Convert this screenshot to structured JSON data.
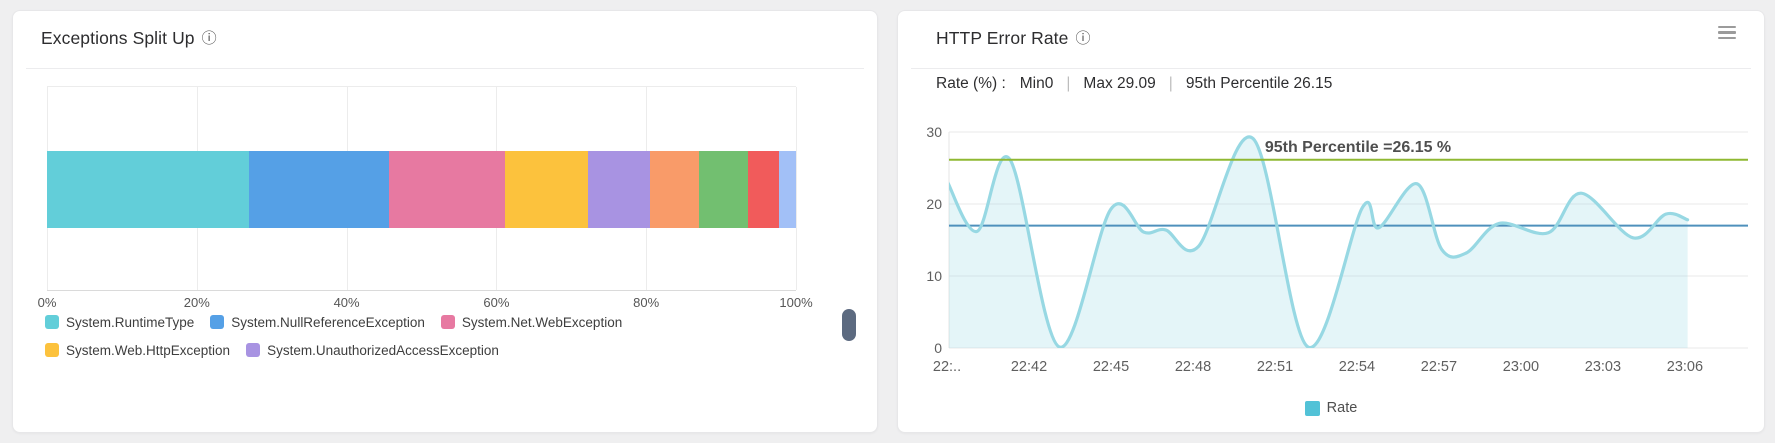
{
  "page": {
    "background": "#efeff0"
  },
  "icons": {
    "info": "ⓘ",
    "menu": "hamburger-menu"
  },
  "left_panel": {
    "title": "Exceptions Split Up",
    "chart_data": {
      "type": "bar",
      "subtype": "horizontal-stacked-percent",
      "xlim": [
        0,
        100
      ],
      "x_tick_labels": [
        "0%",
        "20%",
        "40%",
        "60%",
        "80%",
        "100%"
      ],
      "grid": "vertical",
      "legend_position": "bottom",
      "segments": [
        {
          "label": "System.RuntimeType",
          "value": 27.0,
          "color": "#62ced9"
        },
        {
          "label": "System.NullReferenceException",
          "value": 18.7,
          "color": "#55a0e6"
        },
        {
          "label": "System.Net.WebException",
          "value": 15.5,
          "color": "#e779a1"
        },
        {
          "label": "System.Web.HttpException",
          "value": 11.0,
          "color": "#fcc23d"
        },
        {
          "label": "System.UnauthorizedAccessException",
          "value": 8.3,
          "color": "#a893e2"
        },
        {
          "label": "",
          "value": 6.6,
          "color": "#f99b69"
        },
        {
          "label": "",
          "value": 6.5,
          "color": "#72bf70"
        },
        {
          "label": "",
          "value": 4.2,
          "color": "#f15b5b"
        },
        {
          "label": "",
          "value": 2.2,
          "color": "#a2c0f7"
        }
      ],
      "legend_rows": [
        [
          {
            "label": "System.RuntimeType",
            "color": "#62ced9"
          },
          {
            "label": "System.NullReferenceException",
            "color": "#55a0e6"
          },
          {
            "label": "System.Net.WebException",
            "color": "#e779a1"
          }
        ],
        [
          {
            "label": "System.Web.HttpException",
            "color": "#fcc23d"
          },
          {
            "label": "System.UnauthorizedAccessException",
            "color": "#a893e2"
          }
        ]
      ]
    }
  },
  "right_panel": {
    "title": "HTTP Error Rate",
    "stats": {
      "prefix": "Rate (%) :",
      "items": [
        "Min0",
        "Max 29.09",
        "95th Percentile 26.15"
      ],
      "separator": "|"
    },
    "chart_data": {
      "type": "area",
      "x_tick_labels": [
        "22:..",
        "22:42",
        "22:45",
        "22:48",
        "22:51",
        "22:54",
        "22:57",
        "23:00",
        "23:03",
        "23:06"
      ],
      "x_minutes_per_tick": 3,
      "x_unit": "minutes after first tick",
      "yticks": [
        0,
        10,
        20,
        30
      ],
      "ylim": [
        0,
        30
      ],
      "grid": "horizontal",
      "legend_position": "bottom",
      "series": [
        {
          "name": "Rate",
          "line_color": "#97d8e3",
          "fill_color": "rgba(151,216,227,0.26)",
          "points": [
            [
              0,
              23.2
            ],
            [
              1.1,
              16.2
            ],
            [
              2.3,
              26.2
            ],
            [
              4.1,
              0.15
            ],
            [
              6,
              19.3
            ],
            [
              7.2,
              16.1
            ],
            [
              8,
              16.4
            ],
            [
              9.2,
              14.1
            ],
            [
              11.2,
              29.09
            ],
            [
              13.2,
              0.15
            ],
            [
              15.2,
              19.5
            ],
            [
              15.8,
              16.7
            ],
            [
              17.2,
              22.8
            ],
            [
              18.1,
              13.7
            ],
            [
              19,
              13.2
            ],
            [
              20.2,
              17.3
            ],
            [
              22,
              16.0
            ],
            [
              23.2,
              21.5
            ],
            [
              25.1,
              15.3
            ],
            [
              26.3,
              18.6
            ],
            [
              27.1,
              17.8
            ]
          ]
        }
      ],
      "reference_lines": [
        {
          "value": 26.15,
          "color": "#8fb832",
          "annotation": "95th Percentile =26.15 %"
        },
        {
          "value": 17,
          "color": "#4e90bc",
          "annotation": ""
        }
      ],
      "legend": [
        {
          "label": "Rate",
          "color": "#52c2d7"
        }
      ]
    }
  }
}
